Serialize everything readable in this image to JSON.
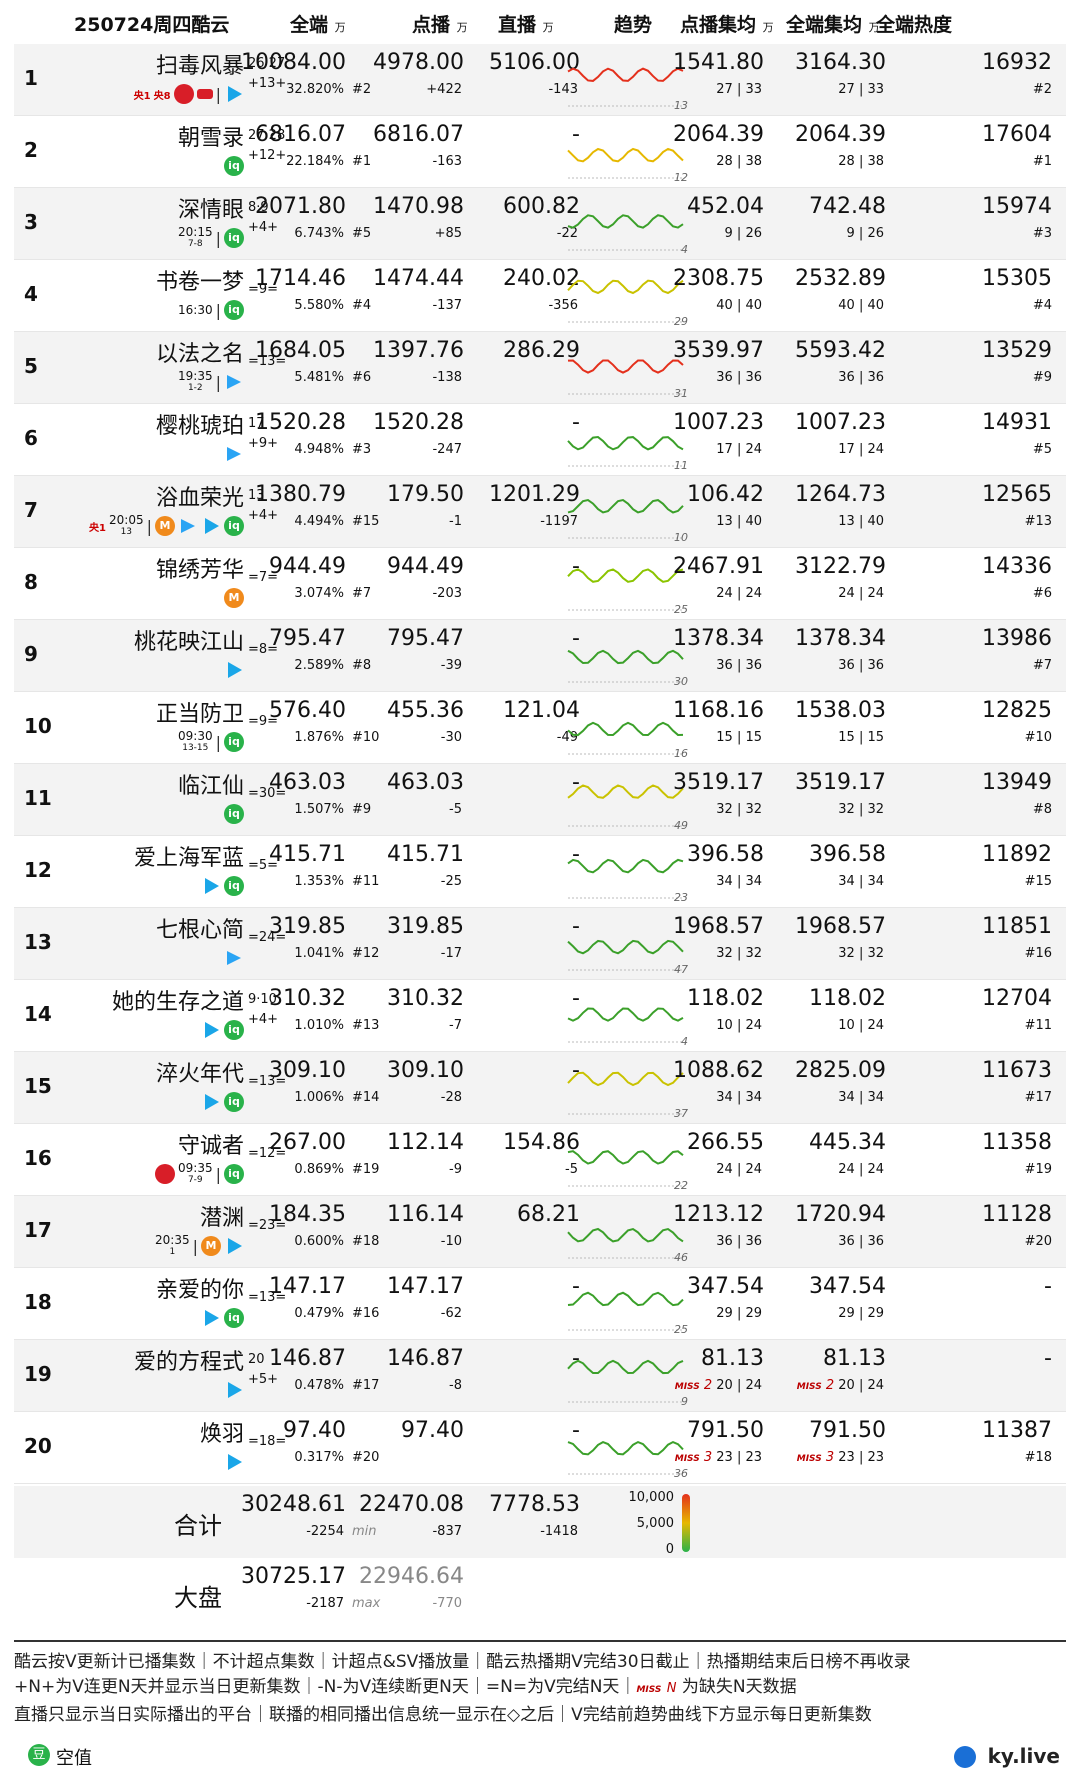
{
  "header": {
    "date": "250724周四酷云",
    "all": "全端",
    "play": "点播",
    "live": "直播",
    "trend": "趋势",
    "avg_play": "点播集均",
    "avg_all": "全端集均",
    "heat": "全端热度",
    "unit": "万"
  },
  "rows": [
    {
      "rank": "1",
      "title": "扫毒风暴",
      "eps": "26·27",
      "streak": "+13+",
      "platforms": [
        "cctv1",
        "cctv8",
        "tv",
        "mgs",
        "|",
        "tx"
      ],
      "all": "10084.00",
      "pct": "32.820%",
      "play": "4978.00",
      "play_rank": "#2",
      "play_d": "+422",
      "live": "5106.00",
      "live_d": "-143",
      "days": "13",
      "avg_play": "1541.80",
      "avg_play_e": "27 | 33",
      "avg_all": "3164.30",
      "avg_all_e": "27 | 33",
      "heat": "16932",
      "heat_r": "#2",
      "trend_color": "#e4301c"
    },
    {
      "rank": "2",
      "title": "朝雪录",
      "eps": "27·28",
      "streak": "+12+",
      "platforms": [
        "iq"
      ],
      "all": "6816.07",
      "pct": "22.184%",
      "play": "6816.07",
      "play_rank": "#1",
      "play_d": "-163",
      "live": "-",
      "live_d": "",
      "days": "12",
      "avg_play": "2064.39",
      "avg_play_e": "28 | 38",
      "avg_all": "2064.39",
      "avg_all_e": "28 | 38",
      "heat": "17604",
      "heat_r": "#1",
      "trend_color": "#e6b800"
    },
    {
      "rank": "3",
      "title": "深情眼",
      "eps": "8·9",
      "streak": "+4+",
      "platforms": [
        "time:20:15:7-8",
        "|",
        "iq"
      ],
      "all": "2071.80",
      "pct": "6.743%",
      "play": "1470.98",
      "play_rank": "#5",
      "play_d": "+85",
      "live": "600.82",
      "live_d": "-22",
      "days": "4",
      "avg_play": "452.04",
      "avg_play_e": "9 | 26",
      "avg_all": "742.48",
      "avg_all_e": "9 | 26",
      "heat": "15974",
      "heat_r": "#3",
      "trend_color": "#3ba02a"
    },
    {
      "rank": "4",
      "title": "书卷一梦",
      "eps": "",
      "streak": "=9=",
      "platforms": [
        "time:16:30:",
        "|",
        "iq"
      ],
      "all": "1714.46",
      "pct": "5.580%",
      "play": "1474.44",
      "play_rank": "#4",
      "play_d": "-137",
      "live": "240.02",
      "live_d": "-356",
      "days": "29",
      "avg_play": "2308.75",
      "avg_play_e": "40 | 40",
      "avg_all": "2532.89",
      "avg_all_e": "40 | 40",
      "heat": "15305",
      "heat_r": "#4",
      "trend_color": "#c9c200"
    },
    {
      "rank": "5",
      "title": "以法之名",
      "eps": "",
      "streak": "=13=",
      "platforms": [
        "time:19:35:1-2",
        "|",
        "yk"
      ],
      "all": "1684.05",
      "pct": "5.481%",
      "play": "1397.76",
      "play_rank": "#6",
      "play_d": "-138",
      "live": "286.29",
      "live_d": "",
      "days": "31",
      "avg_play": "3539.97",
      "avg_play_e": "36 | 36",
      "avg_all": "5593.42",
      "avg_all_e": "36 | 36",
      "heat": "13529",
      "heat_r": "#9",
      "trend_color": "#e4301c"
    },
    {
      "rank": "6",
      "title": "樱桃琥珀",
      "eps": "17",
      "streak": "+9+",
      "platforms": [
        "yk"
      ],
      "all": "1520.28",
      "pct": "4.948%",
      "play": "1520.28",
      "play_rank": "#3",
      "play_d": "-247",
      "live": "-",
      "live_d": "",
      "days": "11",
      "avg_play": "1007.23",
      "avg_play_e": "17 | 24",
      "avg_all": "1007.23",
      "avg_all_e": "17 | 24",
      "heat": "14931",
      "heat_r": "#5",
      "trend_color": "#3ba02a"
    },
    {
      "rank": "7",
      "title": "浴血荣光",
      "eps": "13",
      "streak": "+4+",
      "platforms": [
        "cctv1",
        "time:20:05:13",
        "|",
        "mg",
        "yk",
        "tx",
        "iq"
      ],
      "all": "1380.79",
      "pct": "4.494%",
      "play": "179.50",
      "play_rank": "#15",
      "play_d": "-1",
      "live": "1201.29",
      "live_d": "-1197",
      "days": "10",
      "avg_play": "106.42",
      "avg_play_e": "13 | 40",
      "avg_all": "1264.73",
      "avg_all_e": "13 | 40",
      "heat": "12565",
      "heat_r": "#13",
      "trend_color": "#3ba02a"
    },
    {
      "rank": "8",
      "title": "锦绣芳华",
      "eps": "",
      "streak": "=7=",
      "platforms": [
        "mg"
      ],
      "all": "944.49",
      "pct": "3.074%",
      "play": "944.49",
      "play_rank": "#7",
      "play_d": "-203",
      "live": "-",
      "live_d": "",
      "days": "25",
      "avg_play": "2467.91",
      "avg_play_e": "24 | 24",
      "avg_all": "3122.79",
      "avg_all_e": "24 | 24",
      "heat": "14336",
      "heat_r": "#6",
      "trend_color": "#8bc400"
    },
    {
      "rank": "9",
      "title": "桃花映江山",
      "eps": "",
      "streak": "=8=",
      "platforms": [
        "tx"
      ],
      "all": "795.47",
      "pct": "2.589%",
      "play": "795.47",
      "play_rank": "#8",
      "play_d": "-39",
      "live": "-",
      "live_d": "",
      "days": "30",
      "avg_play": "1378.34",
      "avg_play_e": "36 | 36",
      "avg_all": "1378.34",
      "avg_all_e": "36 | 36",
      "heat": "13986",
      "heat_r": "#7",
      "trend_color": "#3ba02a"
    },
    {
      "rank": "10",
      "title": "正当防卫",
      "eps": "",
      "streak": "=9=",
      "platforms": [
        "time:09:30:13-15",
        "|",
        "iq"
      ],
      "all": "576.40",
      "pct": "1.876%",
      "play": "455.36",
      "play_rank": "#10",
      "play_d": "-30",
      "live": "121.04",
      "live_d": "-49",
      "days": "16",
      "avg_play": "1168.16",
      "avg_play_e": "15 | 15",
      "avg_all": "1538.03",
      "avg_all_e": "15 | 15",
      "heat": "12825",
      "heat_r": "#10",
      "trend_color": "#3ba02a"
    },
    {
      "rank": "11",
      "title": "临江仙",
      "eps": "",
      "streak": "=30=",
      "platforms": [
        "iq"
      ],
      "all": "463.03",
      "pct": "1.507%",
      "play": "463.03",
      "play_rank": "#9",
      "play_d": "-5",
      "live": "-",
      "live_d": "",
      "days": "49",
      "avg_play": "3519.17",
      "avg_play_e": "32 | 32",
      "avg_all": "3519.17",
      "avg_all_e": "32 | 32",
      "heat": "13949",
      "heat_r": "#8",
      "trend_color": "#c9c200"
    },
    {
      "rank": "12",
      "title": "爱上海军蓝",
      "eps": "",
      "streak": "=5=",
      "platforms": [
        "tx",
        "iq"
      ],
      "all": "415.71",
      "pct": "1.353%",
      "play": "415.71",
      "play_rank": "#11",
      "play_d": "-25",
      "live": "-",
      "live_d": "",
      "days": "23",
      "avg_play": "396.58",
      "avg_play_e": "34 | 34",
      "avg_all": "396.58",
      "avg_all_e": "34 | 34",
      "heat": "11892",
      "heat_r": "#15",
      "trend_color": "#3ba02a"
    },
    {
      "rank": "13",
      "title": "七根心简",
      "eps": "",
      "streak": "=24=",
      "platforms": [
        "yk"
      ],
      "all": "319.85",
      "pct": "1.041%",
      "play": "319.85",
      "play_rank": "#12",
      "play_d": "-17",
      "live": "-",
      "live_d": "",
      "days": "47",
      "avg_play": "1968.57",
      "avg_play_e": "32 | 32",
      "avg_all": "1968.57",
      "avg_all_e": "32 | 32",
      "heat": "11851",
      "heat_r": "#16",
      "trend_color": "#3ba02a"
    },
    {
      "rank": "14",
      "title": "她的生存之道",
      "eps": "9·10",
      "streak": "+4+",
      "platforms": [
        "tx",
        "iq"
      ],
      "all": "310.32",
      "pct": "1.010%",
      "play": "310.32",
      "play_rank": "#13",
      "play_d": "-7",
      "live": "-",
      "live_d": "",
      "days": "4",
      "avg_play": "118.02",
      "avg_play_e": "10 | 24",
      "avg_all": "118.02",
      "avg_all_e": "10 | 24",
      "heat": "12704",
      "heat_r": "#11",
      "trend_color": "#3ba02a"
    },
    {
      "rank": "15",
      "title": "淬火年代",
      "eps": "",
      "streak": "=13=",
      "platforms": [
        "tx",
        "iq"
      ],
      "all": "309.10",
      "pct": "1.006%",
      "play": "309.10",
      "play_rank": "#14",
      "play_d": "-28",
      "live": "-",
      "live_d": "",
      "days": "37",
      "avg_play": "1088.62",
      "avg_play_e": "34 | 34",
      "avg_all": "2825.09",
      "avg_all_e": "34 | 34",
      "heat": "11673",
      "heat_r": "#17",
      "trend_color": "#c9c200"
    },
    {
      "rank": "16",
      "title": "守诚者",
      "eps": "",
      "streak": "=12=",
      "platforms": [
        "tv",
        "time:09:35:7-9",
        "|",
        "iq"
      ],
      "all": "267.00",
      "pct": "0.869%",
      "play": "112.14",
      "play_rank": "#19",
      "play_d": "-9",
      "live": "154.86",
      "live_d": "-5",
      "days": "22",
      "avg_play": "266.55",
      "avg_play_e": "24 | 24",
      "avg_all": "445.34",
      "avg_all_e": "24 | 24",
      "heat": "11358",
      "heat_r": "#19",
      "trend_color": "#3ba02a"
    },
    {
      "rank": "17",
      "title": "潜渊",
      "eps": "",
      "streak": "=23=",
      "platforms": [
        "time:20:35:1",
        "|",
        "mg",
        "tx"
      ],
      "all": "184.35",
      "pct": "0.600%",
      "play": "116.14",
      "play_rank": "#18",
      "play_d": "-10",
      "live": "68.21",
      "live_d": "",
      "days": "46",
      "avg_play": "1213.12",
      "avg_play_e": "36 | 36",
      "avg_all": "1720.94",
      "avg_all_e": "36 | 36",
      "heat": "11128",
      "heat_r": "#20",
      "trend_color": "#3ba02a"
    },
    {
      "rank": "18",
      "title": "亲爱的你",
      "eps": "",
      "streak": "=13=",
      "platforms": [
        "tx",
        "iq"
      ],
      "all": "147.17",
      "pct": "0.479%",
      "play": "147.17",
      "play_rank": "#16",
      "play_d": "-62",
      "live": "-",
      "live_d": "",
      "days": "25",
      "avg_play": "347.54",
      "avg_play_e": "29 | 29",
      "avg_all": "347.54",
      "avg_all_e": "29 | 29",
      "heat": "-",
      "heat_r": "",
      "trend_color": "#3ba02a"
    },
    {
      "rank": "19",
      "title": "爱的方程式",
      "eps": "20",
      "streak": "+5+",
      "platforms": [
        "tx"
      ],
      "all": "146.87",
      "pct": "0.478%",
      "play": "146.87",
      "play_rank": "#17",
      "play_d": "-8",
      "live": "-",
      "live_d": "",
      "days": "9",
      "avg_play": "81.13",
      "avg_play_e": "20 | 24",
      "avg_play_miss": "2",
      "avg_all": "81.13",
      "avg_all_e": "20 | 24",
      "avg_all_miss": "2",
      "heat": "-",
      "heat_r": "",
      "trend_color": "#3ba02a"
    },
    {
      "rank": "20",
      "title": "焕羽",
      "eps": "",
      "streak": "=18=",
      "platforms": [
        "tx"
      ],
      "all": "97.40",
      "pct": "0.317%",
      "play": "97.40",
      "play_rank": "#20",
      "play_d": "",
      "live": "-",
      "live_d": "",
      "days": "36",
      "avg_play": "791.50",
      "avg_play_e": "23 | 23",
      "avg_play_miss": "3",
      "avg_all": "791.50",
      "avg_all_e": "23 | 23",
      "avg_all_miss": "3",
      "heat": "11387",
      "heat_r": "#18",
      "trend_color": "#3ba02a"
    }
  ],
  "totals": {
    "label": "合计",
    "all": "30248.61",
    "all_d": "-2254",
    "play": "22470.08",
    "play_min": "min",
    "play_d": "-837",
    "live": "7778.53",
    "live_d": "-1418",
    "scale_top": "10,000",
    "scale_mid": "5,000",
    "scale_bot": "0"
  },
  "market": {
    "label": "大盘",
    "all": "30725.17",
    "all_d": "-2187",
    "play": "22946.64",
    "play_max": "max",
    "play_d": "-770"
  },
  "legend": {
    "line1": "酷云按V更新计已播集数｜不计超点集数｜计超点&SV播放量｜酷云热播期V完结30日截止｜热播期结束后日榜不再收录",
    "line2a": "+N+为V连更N天并显示当日更新集数｜-N-为V连续断更N天｜=N=为V完结N天｜",
    "line2_miss": "MISS",
    "line2_n": "N",
    "line2b": " 为缺失N天数据",
    "line3": "直播只显示当日实际播出的平台｜联播的相同播出信息统一显示在◇之后｜V完结前趋势曲线下方显示每日更新集数",
    "miss_label": "MISS"
  },
  "footer": {
    "empty_label": "空值",
    "empty_icon": "豆",
    "site": "ky.live"
  },
  "colors": {
    "green": "#29b24a",
    "yellow": "#e6b800",
    "red": "#e4301c"
  }
}
